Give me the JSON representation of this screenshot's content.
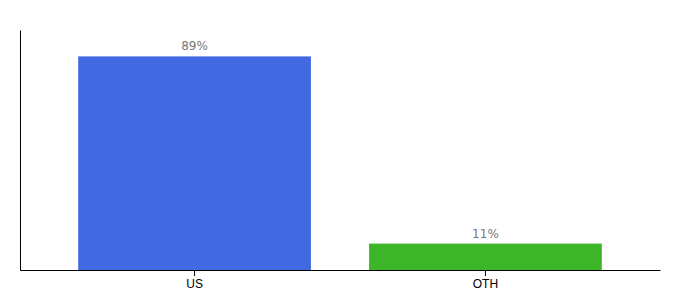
{
  "chart_data": {
    "type": "bar",
    "categories": [
      "US",
      "OTH"
    ],
    "values": [
      89,
      11
    ],
    "colors": [
      "#4169e1",
      "#3cb528"
    ],
    "value_labels": [
      "89%",
      "11%"
    ],
    "data_labels": true,
    "ylim": [
      0,
      100
    ],
    "grid": false,
    "tick_labels": "x"
  }
}
